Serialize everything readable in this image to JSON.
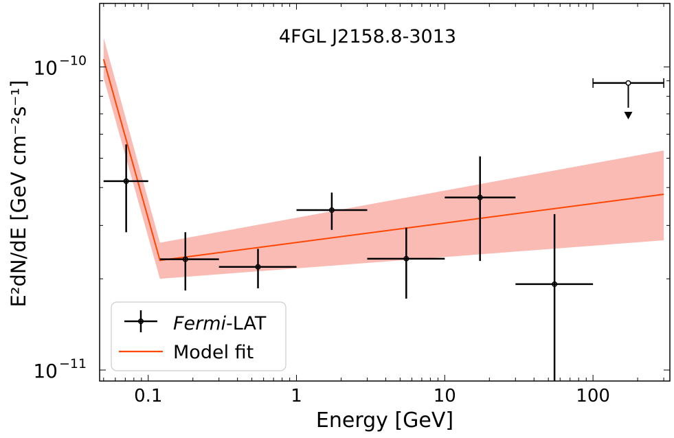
{
  "chart_data": {
    "type": "scatter",
    "title": "4FGL J2158.8-3013",
    "xlabel": "Energy [GeV]",
    "ylabel": "E²dN/dE [GeV cm⁻²s⁻¹]",
    "xscale": "log",
    "yscale": "log",
    "xlim": [
      0.047,
      330
    ],
    "ylim": [
      9.2e-12,
      1.62e-10
    ],
    "x_ticks": [
      {
        "value": 0.1,
        "label": "0.1"
      },
      {
        "value": 1,
        "label": "1"
      },
      {
        "value": 10,
        "label": "10"
      },
      {
        "value": 100,
        "label": "100"
      }
    ],
    "y_ticks": [
      {
        "value": 1e-11,
        "base": "10",
        "exp": "−11"
      },
      {
        "value": 1e-10,
        "base": "10",
        "exp": "−10"
      }
    ],
    "legend": {
      "position": "lower-left",
      "entries": [
        {
          "label_italic": "Fermi",
          "label": "-LAT"
        },
        {
          "label": "Model fit"
        }
      ]
    },
    "colors": {
      "data": "#000000",
      "model_line": "#ff4500",
      "model_band": "#f8a49b"
    },
    "series": [
      {
        "name": "Fermi-LAT",
        "kind": "errorbar",
        "points": [
          {
            "x": 0.071,
            "xlo": 0.05,
            "xhi": 0.1,
            "y": 4.2e-11,
            "ylo": 2.85e-11,
            "yhi": 5.55e-11
          },
          {
            "x": 0.178,
            "xlo": 0.12,
            "xhi": 0.3,
            "y": 2.32e-11,
            "ylo": 1.83e-11,
            "yhi": 2.85e-11
          },
          {
            "x": 0.55,
            "xlo": 0.3,
            "xhi": 1.0,
            "y": 2.19e-11,
            "ylo": 1.86e-11,
            "yhi": 2.51e-11
          },
          {
            "x": 1.73,
            "xlo": 1.0,
            "xhi": 3.0,
            "y": 3.37e-11,
            "ylo": 2.9e-11,
            "yhi": 3.85e-11
          },
          {
            "x": 5.5,
            "xlo": 3.0,
            "xhi": 10.0,
            "y": 2.33e-11,
            "ylo": 1.72e-11,
            "yhi": 2.95e-11
          },
          {
            "x": 17.3,
            "xlo": 10.0,
            "xhi": 30.0,
            "y": 3.71e-11,
            "ylo": 2.29e-11,
            "yhi": 5.07e-11
          },
          {
            "x": 55.0,
            "xlo": 30.0,
            "xhi": 100.0,
            "y": 1.92e-11,
            "ylo": 9.2e-12,
            "yhi": 3.27e-11
          }
        ],
        "upper_limits": [
          {
            "x": 173.0,
            "xlo": 100.0,
            "xhi": 300.0,
            "y": 8.85e-11
          }
        ]
      },
      {
        "name": "Model fit",
        "kind": "line",
        "points": [
          {
            "x": 0.05,
            "y": 1.06e-10,
            "lo": 9.2e-11,
            "hi": 1.25e-10
          },
          {
            "x": 0.12,
            "y": 2.3e-11,
            "lo": 2e-11,
            "hi": 2.63e-11
          },
          {
            "x": 300.0,
            "y": 3.8e-11,
            "lo": 2.68e-11,
            "hi": 5.3e-11
          }
        ]
      }
    ]
  }
}
